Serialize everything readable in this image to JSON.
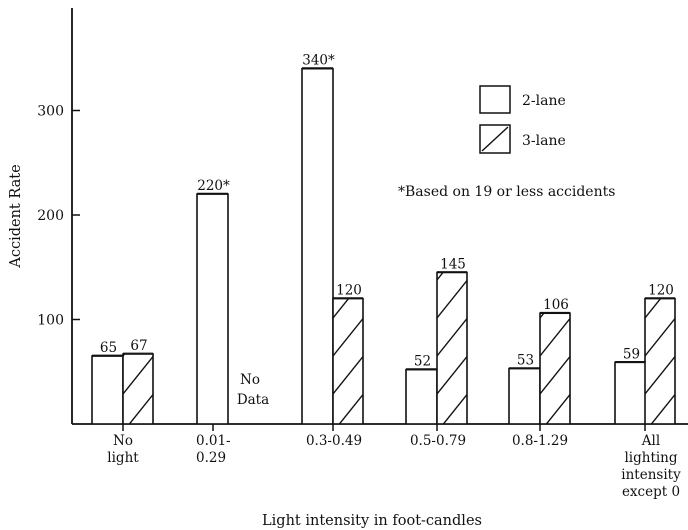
{
  "chart_data": {
    "type": "bar",
    "xlabel": "Light intensity in foot-candles",
    "ylabel": "Accident Rate",
    "ylim": [
      0,
      400
    ],
    "yticks": [
      100,
      200,
      300
    ],
    "categories": [
      [
        "No",
        "light"
      ],
      [
        "0.01-",
        "0.29"
      ],
      [
        "0.3-0.49"
      ],
      [
        "0.5-0.79"
      ],
      [
        "0.8-1.29"
      ],
      [
        "All",
        "lighting",
        "intensity",
        "except 0"
      ]
    ],
    "series": [
      {
        "name": "2-lane",
        "pattern": "plain",
        "values": [
          65,
          220,
          340,
          52,
          53,
          59
        ],
        "labels": [
          "65",
          "220*",
          "340*",
          "52",
          "53",
          "59"
        ]
      },
      {
        "name": "3-lane",
        "pattern": "hatched",
        "values": [
          67,
          null,
          120,
          145,
          106,
          120
        ],
        "labels": [
          "67",
          "",
          "120",
          "145",
          "106",
          "120"
        ]
      }
    ],
    "no_data_label": [
      "No",
      "Data"
    ],
    "footnote": "*Based on 19 or less accidents",
    "legend_position": "top-right",
    "colors": {
      "bar_fill": "#ffffff",
      "stroke": "#111111"
    }
  }
}
